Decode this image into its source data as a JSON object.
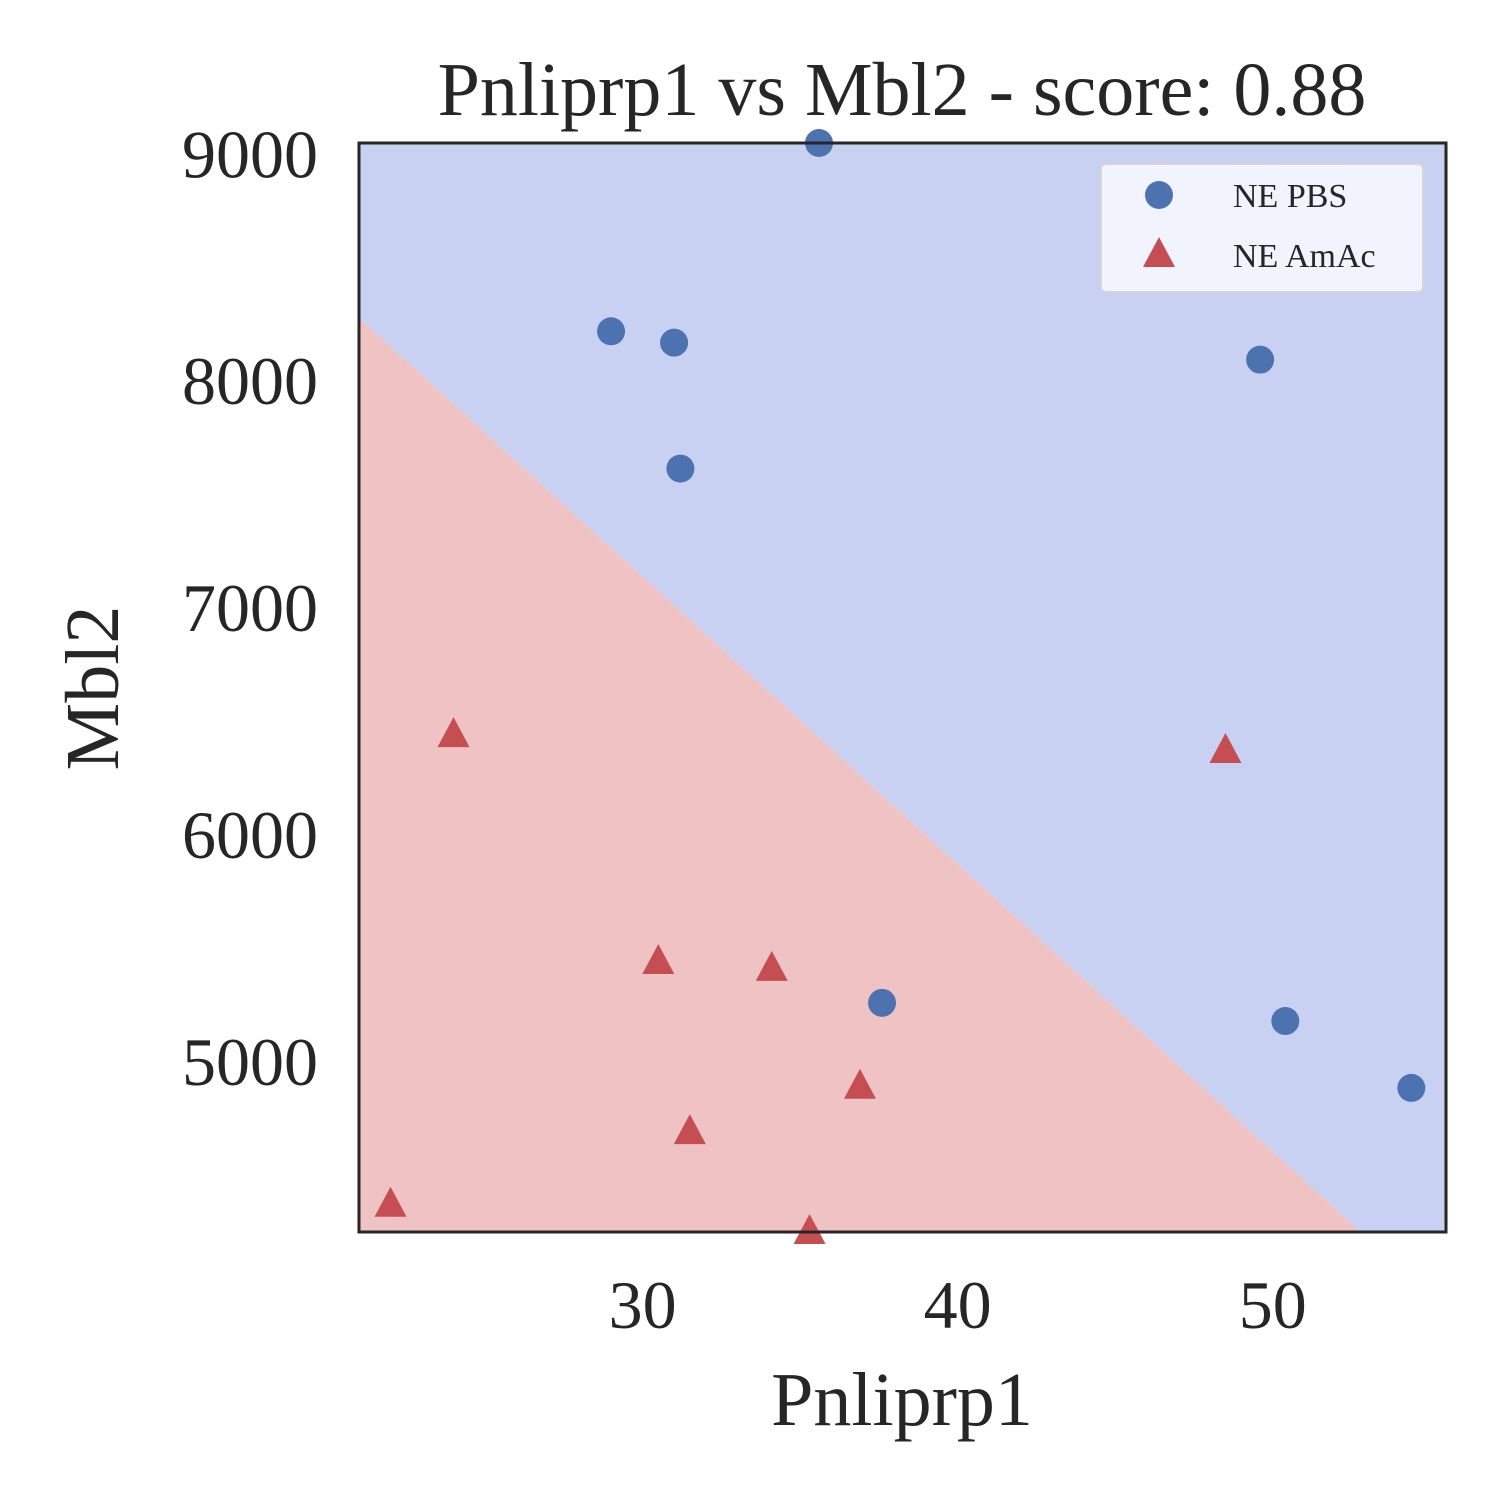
{
  "chart_data": {
    "type": "scatter",
    "title": "Pnliprp1 vs Mbl2 - score: 0.88",
    "xlabel": "Pnliprp1",
    "ylabel": "Mbl2",
    "xlim": [
      21.0,
      55.5
    ],
    "ylim": [
      4250,
      9050
    ],
    "x_ticks": [
      30,
      40,
      50
    ],
    "y_ticks": [
      5000,
      6000,
      7000,
      8000,
      9000
    ],
    "grid": false,
    "legend_position": "top-right",
    "decision_regions": {
      "boundary_line": [
        [
          21.0,
          8280
        ],
        [
          52.8,
          4250
        ]
      ],
      "upper_class": "NE PBS",
      "lower_class": "NE AmAc",
      "upper_color": "#c8d1f1",
      "lower_color": "#efc3c4"
    },
    "series": [
      {
        "name": "NE PBS",
        "marker": "circle",
        "color": "#4c72b0",
        "points": [
          {
            "x": 35.6,
            "y": 9050
          },
          {
            "x": 29.0,
            "y": 8220
          },
          {
            "x": 31.0,
            "y": 8170
          },
          {
            "x": 49.6,
            "y": 8095
          },
          {
            "x": 31.2,
            "y": 7615
          },
          {
            "x": 37.6,
            "y": 5260
          },
          {
            "x": 50.4,
            "y": 5180
          },
          {
            "x": 54.4,
            "y": 4885
          }
        ]
      },
      {
        "name": "NE AmAc",
        "marker": "triangle",
        "color": "#c44e52",
        "points": [
          {
            "x": 24.0,
            "y": 6440
          },
          {
            "x": 48.5,
            "y": 6370
          },
          {
            "x": 30.5,
            "y": 5440
          },
          {
            "x": 34.1,
            "y": 5410
          },
          {
            "x": 36.9,
            "y": 4890
          },
          {
            "x": 31.5,
            "y": 4690
          },
          {
            "x": 22.0,
            "y": 4370
          },
          {
            "x": 35.3,
            "y": 4250
          }
        ]
      }
    ]
  }
}
